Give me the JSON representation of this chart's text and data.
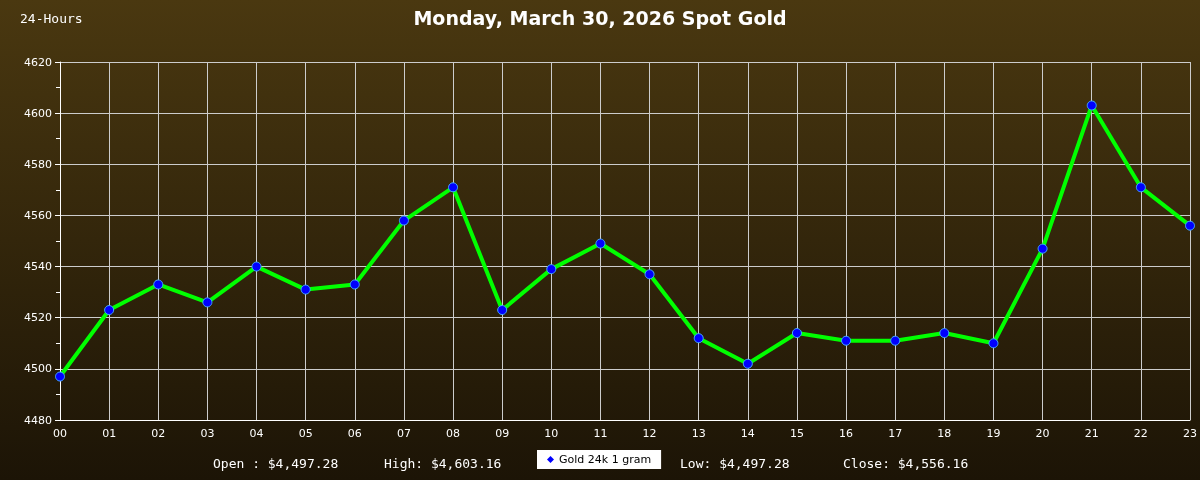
{
  "chart_data": {
    "type": "line",
    "title": "Monday, March 30, 2026 Spot Gold",
    "annotations": [
      "24-Hours",
      "Open : $4,497.28",
      "High: $4,603.16",
      "Low: $4,497.28",
      "Close: $4,556.16"
    ],
    "categories": [
      "00",
      "01",
      "02",
      "03",
      "04",
      "05",
      "06",
      "07",
      "08",
      "09",
      "10",
      "11",
      "12",
      "13",
      "14",
      "15",
      "16",
      "17",
      "18",
      "19",
      "20",
      "21",
      "22",
      "23"
    ],
    "series": [
      {
        "name": "Gold 24k 1 gram",
        "color": "#00ff00",
        "colors": [
          "#0000ff",
          "#0000ff",
          "#0000ff",
          "#0000ff",
          "#0000ff",
          "#0000ff",
          "#0000ff",
          "#0000ff",
          "#0000ff",
          "#0000ff",
          "#0000ff",
          "#0000ff",
          "#0000ff",
          "#0000ff",
          "#0000ff",
          "#0000ff",
          "#0000ff",
          "#0000ff",
          "#0000ff",
          "#0000ff",
          "#0000ff",
          "#0000ff",
          "#0000ff",
          "#0000ff"
        ],
        "values": [
          4497,
          4523,
          4533,
          4526,
          4540,
          4531,
          4533,
          4558,
          4571,
          4523,
          4539,
          4549,
          4537,
          4512,
          4502,
          4514,
          4511,
          4511,
          4514,
          4510,
          4547,
          4603,
          4571,
          4556
        ]
      }
    ],
    "ylim": [
      4480,
      4620
    ],
    "yticks": [
      4480,
      4500,
      4520,
      4540,
      4560,
      4580,
      4600,
      4620
    ],
    "grid": true,
    "legend": "bottom",
    "marker": "circle",
    "line_style": "solid"
  }
}
